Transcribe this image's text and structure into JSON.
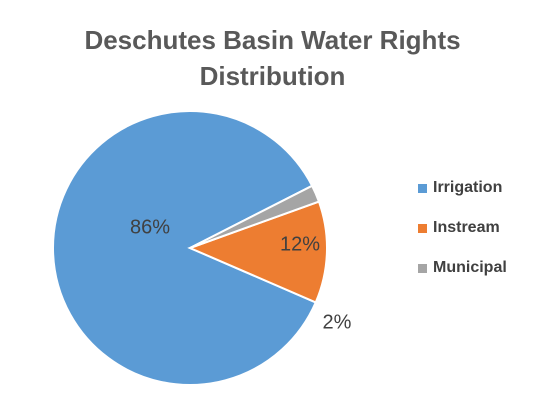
{
  "chart_data": {
    "type": "pie",
    "title_lines": [
      "Deschutes Basin Water Rights",
      "Distribution"
    ],
    "slices": [
      {
        "label": "Irrigation",
        "value": 86,
        "data_label": "86%",
        "color": "#5b9bd5"
      },
      {
        "label": "Instream",
        "value": 12,
        "data_label": "12%",
        "color": "#ed7d31"
      },
      {
        "label": "Municipal",
        "value": 2,
        "data_label": "2%",
        "color": "#a5a5a5"
      }
    ],
    "legend_position": "right"
  }
}
